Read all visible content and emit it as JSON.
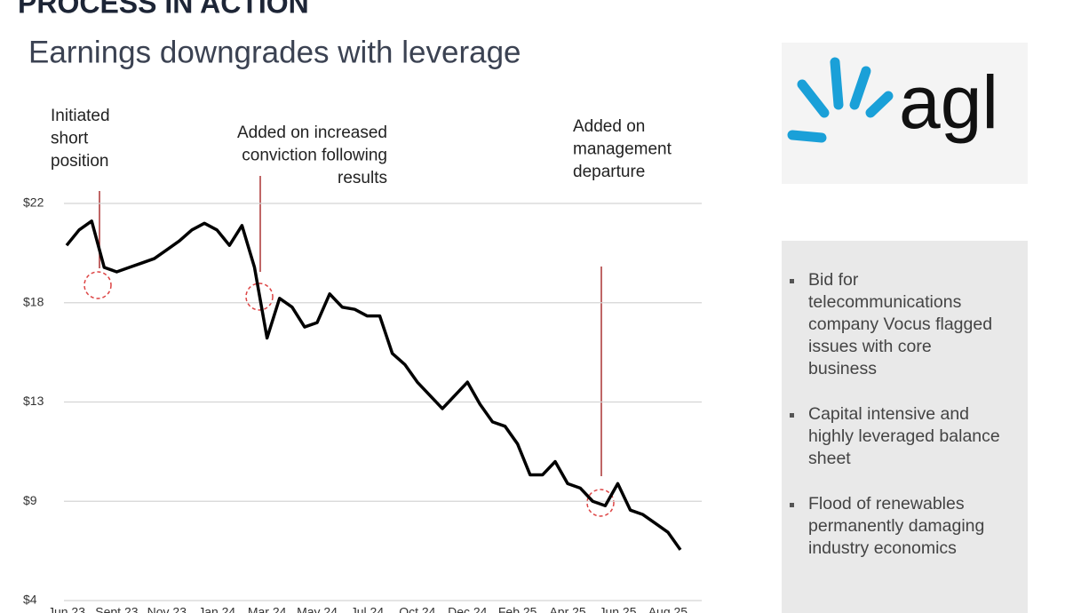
{
  "header": {
    "title": "PROCESS IN ACTION",
    "subtitle": "Earnings downgrades with leverage"
  },
  "logo": "agl",
  "bullets": [
    [
      "Bid for",
      "telecommunications",
      "company Vocus flagged",
      "issues with core",
      "business"
    ],
    [
      "Capital intensive and",
      "highly leveraged balance",
      "sheet"
    ],
    [
      "Flood of renewables",
      "permanently damaging",
      "industry economics"
    ]
  ],
  "chart_data": {
    "type": "line",
    "color": "#000000",
    "grid": true,
    "annotations": [
      [
        "Initiated",
        "short",
        "position"
      ],
      [
        "Added on increased",
        "conviction following",
        "results"
      ],
      [
        "Added on",
        "management",
        "departure"
      ]
    ],
    "x": [
      0,
      0.25,
      0.5,
      0.75,
      1,
      1.25,
      1.5,
      1.75,
      2,
      2.25,
      2.5,
      2.75,
      3,
      3.25,
      3.5,
      3.75,
      4,
      4.25,
      4.5,
      4.75,
      5,
      5.25,
      5.5,
      5.75,
      6,
      6.25,
      6.5,
      6.75,
      7,
      7.25,
      7.5,
      7.75,
      8,
      8.25,
      8.5,
      8.75,
      9,
      9.25,
      9.5,
      9.75,
      10,
      10.25,
      10.5,
      10.75,
      11,
      11.25,
      11.5,
      11.75,
      12,
      12.25
    ],
    "values": [
      20.1,
      20.8,
      21.2,
      19.1,
      18.9,
      19.1,
      19.3,
      19.5,
      19.9,
      20.3,
      20.8,
      21.1,
      20.8,
      20.1,
      21.0,
      19.1,
      15.9,
      17.7,
      17.3,
      16.4,
      16.6,
      17.9,
      17.3,
      17.2,
      16.9,
      16.9,
      15.2,
      14.7,
      13.9,
      13.3,
      12.7,
      13.3,
      13.9,
      12.9,
      12.1,
      11.9,
      11.1,
      9.7,
      9.7,
      10.3,
      9.3,
      9.1,
      8.5,
      8.3,
      9.3,
      8.1,
      7.9,
      7.5,
      7.1,
      6.3
    ],
    "xlim": [
      0,
      12.25
    ],
    "xticks": [
      {
        "value": 0,
        "label": "Jun 23"
      },
      {
        "value": 1,
        "label": "Sept 23"
      },
      {
        "value": 2,
        "label": "Nov 23"
      },
      {
        "value": 3,
        "label": "Jan 24"
      },
      {
        "value": 4,
        "label": "Mar 24"
      },
      {
        "value": 5,
        "label": "May 24"
      },
      {
        "value": 6,
        "label": "Jul 24"
      },
      {
        "value": 7,
        "label": "Oct 24"
      },
      {
        "value": 8,
        "label": "Dec 24"
      },
      {
        "value": 9,
        "label": "Feb 25"
      },
      {
        "value": 10,
        "label": "Apr 25"
      },
      {
        "value": 11,
        "label": "Jun 25"
      },
      {
        "value": 12,
        "label": "Aug 25"
      }
    ],
    "ylim": [
      4,
      22
    ],
    "yticks": [
      {
        "value": 22,
        "label": "$22"
      },
      {
        "value": 17.5,
        "label": "$18"
      },
      {
        "value": 13,
        "label": "$13"
      },
      {
        "value": 8.5,
        "label": "$9"
      },
      {
        "value": 4,
        "label": "$4"
      }
    ]
  }
}
